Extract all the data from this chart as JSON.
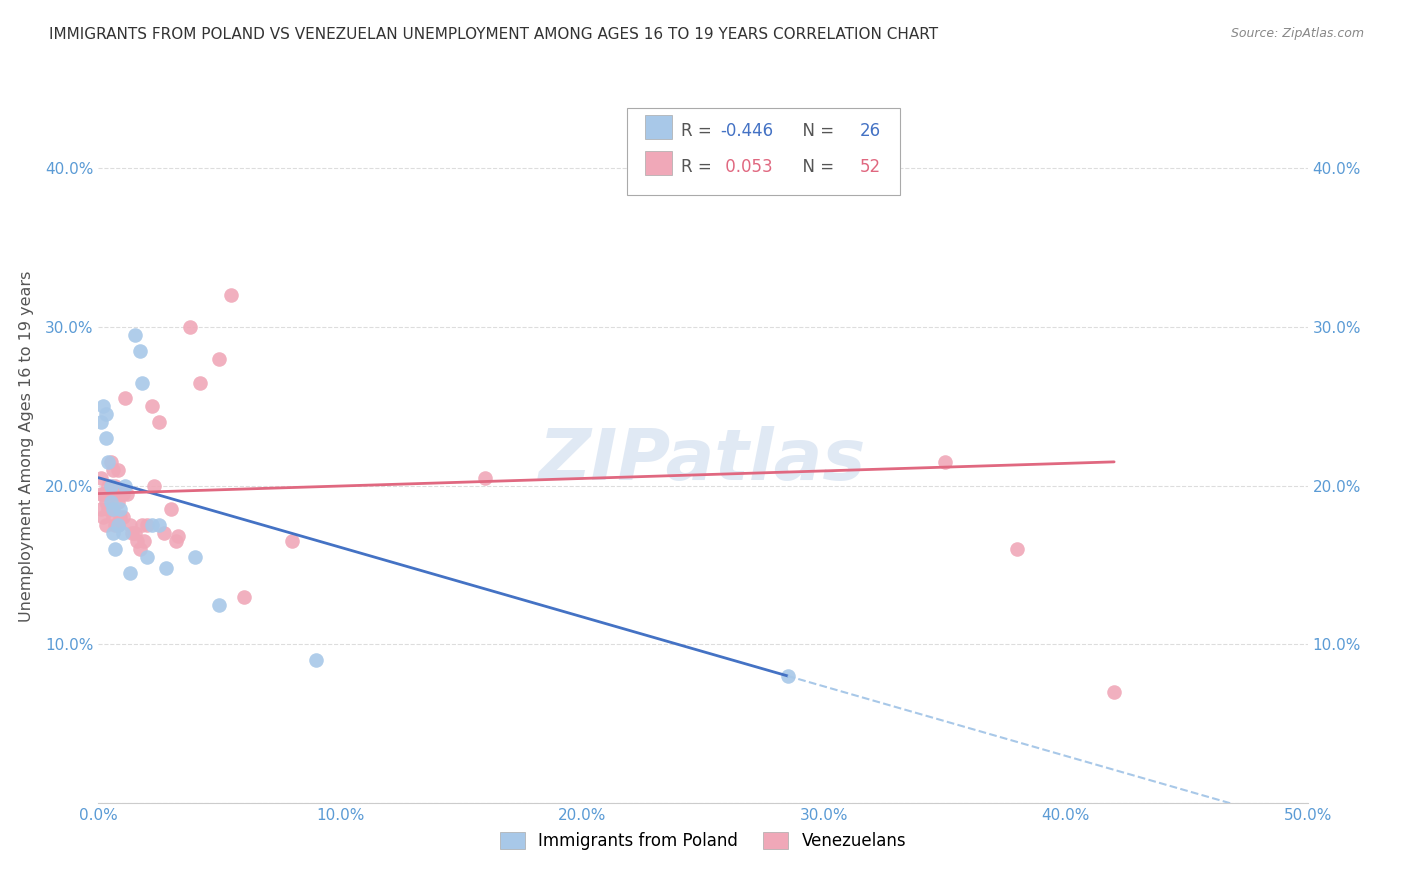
{
  "title": "IMMIGRANTS FROM POLAND VS VENEZUELAN UNEMPLOYMENT AMONG AGES 16 TO 19 YEARS CORRELATION CHART",
  "source": "Source: ZipAtlas.com",
  "ylabel": "Unemployment Among Ages 16 to 19 years",
  "xlim": [
    0.0,
    0.5
  ],
  "ylim": [
    0.0,
    0.45
  ],
  "xticks": [
    0.0,
    0.1,
    0.2,
    0.3,
    0.4,
    0.5
  ],
  "xtick_labels": [
    "0.0%",
    "10.0%",
    "20.0%",
    "30.0%",
    "40.0%",
    "50.0%"
  ],
  "yticks": [
    0.0,
    0.1,
    0.2,
    0.3,
    0.4
  ],
  "ytick_labels": [
    "",
    "10.0%",
    "20.0%",
    "30.0%",
    "40.0%"
  ],
  "blue_color": "#A8C8E8",
  "pink_color": "#F0A8B8",
  "blue_line_color": "#4472C4",
  "pink_line_color": "#E06880",
  "blue_R": -0.446,
  "blue_N": 26,
  "pink_R": 0.053,
  "pink_N": 52,
  "blue_scatter_x": [
    0.001,
    0.002,
    0.003,
    0.003,
    0.004,
    0.005,
    0.005,
    0.006,
    0.006,
    0.007,
    0.008,
    0.009,
    0.01,
    0.011,
    0.013,
    0.015,
    0.017,
    0.018,
    0.02,
    0.022,
    0.025,
    0.028,
    0.04,
    0.05,
    0.09,
    0.285
  ],
  "blue_scatter_y": [
    0.24,
    0.25,
    0.245,
    0.23,
    0.215,
    0.2,
    0.19,
    0.185,
    0.17,
    0.16,
    0.175,
    0.185,
    0.17,
    0.2,
    0.145,
    0.295,
    0.285,
    0.265,
    0.155,
    0.175,
    0.175,
    0.148,
    0.155,
    0.125,
    0.09,
    0.08
  ],
  "pink_scatter_x": [
    0.001,
    0.001,
    0.001,
    0.002,
    0.002,
    0.003,
    0.003,
    0.003,
    0.004,
    0.004,
    0.005,
    0.005,
    0.005,
    0.006,
    0.006,
    0.006,
    0.007,
    0.007,
    0.008,
    0.008,
    0.008,
    0.009,
    0.009,
    0.01,
    0.01,
    0.011,
    0.012,
    0.013,
    0.014,
    0.015,
    0.016,
    0.017,
    0.018,
    0.019,
    0.02,
    0.022,
    0.023,
    0.025,
    0.027,
    0.03,
    0.032,
    0.033,
    0.038,
    0.042,
    0.05,
    0.055,
    0.06,
    0.08,
    0.16,
    0.35,
    0.38,
    0.42
  ],
  "pink_scatter_y": [
    0.205,
    0.195,
    0.185,
    0.195,
    0.18,
    0.195,
    0.19,
    0.175,
    0.2,
    0.185,
    0.215,
    0.2,
    0.185,
    0.21,
    0.195,
    0.18,
    0.2,
    0.175,
    0.21,
    0.19,
    0.175,
    0.195,
    0.18,
    0.195,
    0.18,
    0.255,
    0.195,
    0.175,
    0.17,
    0.17,
    0.165,
    0.16,
    0.175,
    0.165,
    0.175,
    0.25,
    0.2,
    0.24,
    0.17,
    0.185,
    0.165,
    0.168,
    0.3,
    0.265,
    0.28,
    0.32,
    0.13,
    0.165,
    0.205,
    0.215,
    0.16,
    0.07
  ],
  "background_color": "#FFFFFF",
  "grid_color": "#DDDDDD",
  "watermark": "ZIPatlas",
  "legend_labels": [
    "Immigrants from Poland",
    "Venezuelans"
  ],
  "blue_line_x0": 0.0,
  "blue_line_y0": 0.205,
  "blue_line_x1": 0.285,
  "blue_line_y1": 0.08,
  "pink_line_x0": 0.0,
  "pink_line_y0": 0.195,
  "pink_line_x1": 0.42,
  "pink_line_y1": 0.215
}
